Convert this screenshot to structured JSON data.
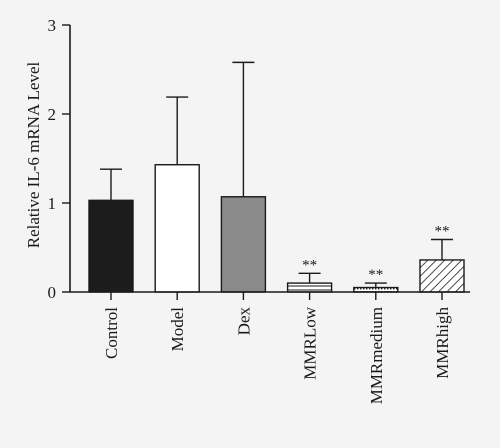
{
  "chart_data": {
    "type": "bar",
    "title": "",
    "xlabel": "",
    "ylabel": "Relative IL-6 mRNA Level",
    "ylim": [
      0,
      3
    ],
    "yticks": [
      0,
      1,
      2,
      3
    ],
    "grid": false,
    "categories": [
      "Control",
      "Model",
      "Dex",
      "MMRLow",
      "MMRmedium",
      "MMRhigh"
    ],
    "values": [
      1.03,
      1.43,
      1.07,
      0.1,
      0.05,
      0.36
    ],
    "errors": [
      0.35,
      0.76,
      1.51,
      0.11,
      0.05,
      0.23
    ],
    "annotations": [
      "",
      "",
      "",
      "**",
      "**",
      "**"
    ],
    "fills": [
      "solid-dark",
      "white",
      "solid-gray",
      "horizontal-hatch",
      "dotted-hatch",
      "diagonal-hatch"
    ],
    "colors": {
      "dark": "#1c1c1c",
      "white": "#ffffff",
      "gray": "#8a8a8a",
      "stroke": "#1a1a1a"
    }
  }
}
